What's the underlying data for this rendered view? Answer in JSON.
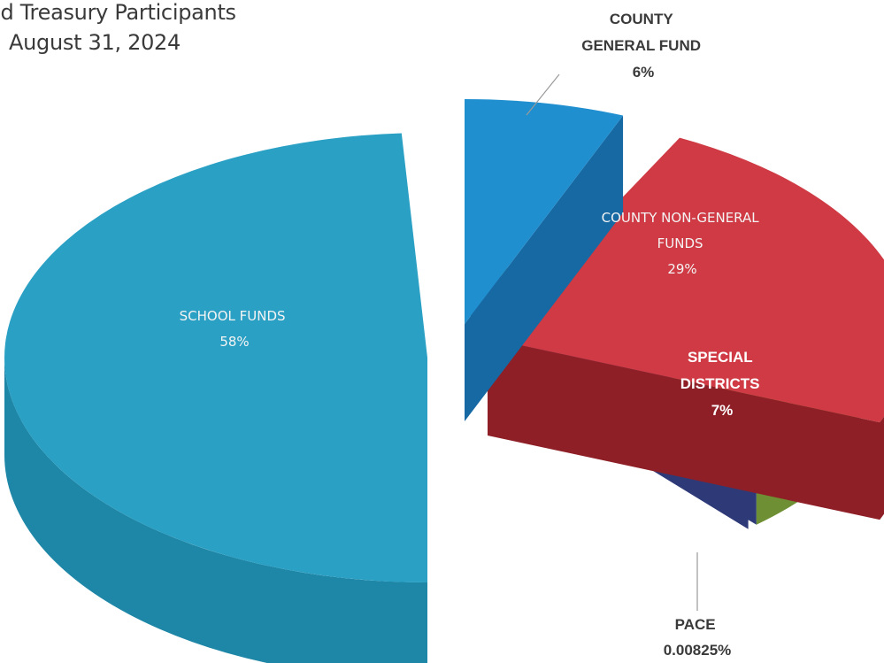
{
  "chart_data": {
    "type": "pie",
    "title_lines": [
      "ed Treasury Participants",
      "August 31, 2024"
    ],
    "slices": [
      {
        "name": "COUNTY GENERAL FUND",
        "label_lines": [
          "COUNTY",
          "GENERAL FUND"
        ],
        "pct_label": "6%",
        "value": 6,
        "color": "#1f8fd0"
      },
      {
        "name": "COUNTY NON-GENERAL FUNDS",
        "label_lines": [
          "COUNTY NON-GENERAL",
          "FUNDS"
        ],
        "pct_label": "29%",
        "value": 29,
        "color": "#cf3a44"
      },
      {
        "name": "SPECIAL DISTRICTS",
        "label_lines": [
          "SPECIAL",
          "DISTRICTS"
        ],
        "pct_label": "7%",
        "value": 7,
        "color": "#8aae4a"
      },
      {
        "name": "PACE",
        "label_lines": [
          "PACE"
        ],
        "pct_label": "0.00825%",
        "value": 0.00825,
        "color": "#2e3a78"
      },
      {
        "name": "SCHOOL FUNDS",
        "label_lines": [
          "SCHOOL FUNDS"
        ],
        "pct_label": "58%",
        "value": 58,
        "color": "#2aa0c4"
      }
    ]
  }
}
